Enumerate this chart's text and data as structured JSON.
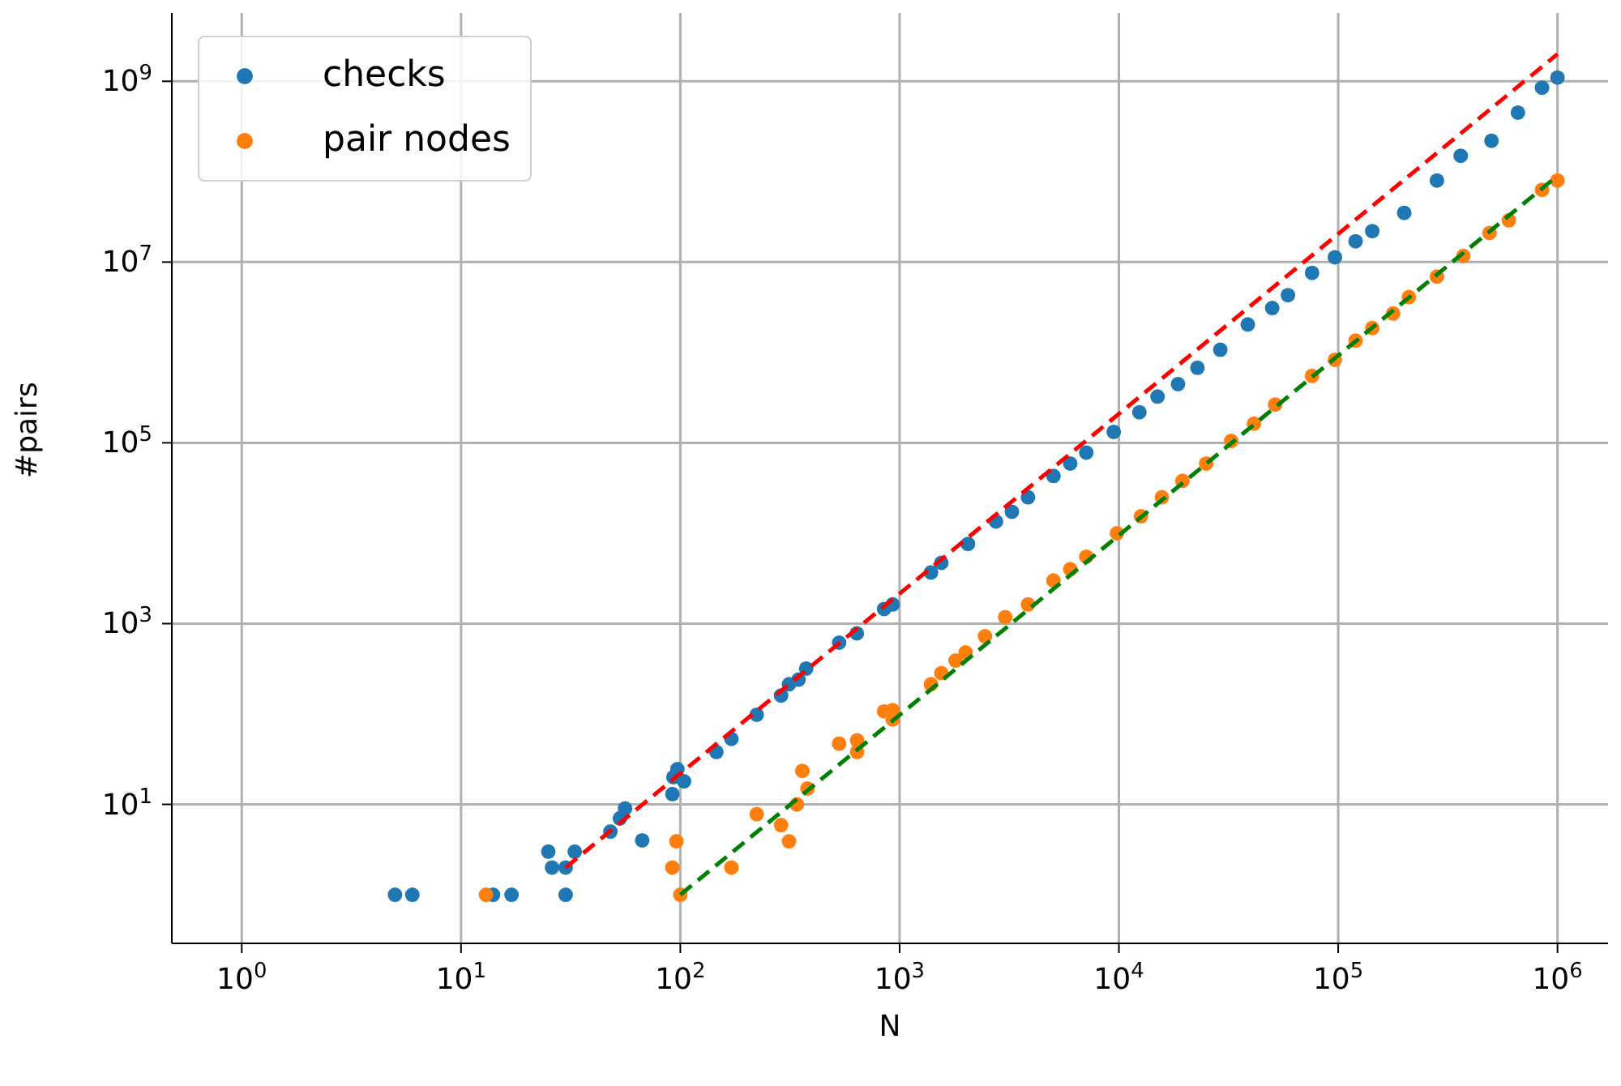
{
  "chart_data": {
    "type": "scatter",
    "xlabel": "N",
    "ylabel": "#pairs",
    "log": "xy",
    "grid": true,
    "legend": "top left",
    "marker": "circle",
    "xlim": [
      0.48,
      1700000.0
    ],
    "ylim": [
      0.29,
      5700000000.0
    ],
    "xticks": [
      {
        "value": 1,
        "label": "10$^{0}$"
      },
      {
        "value": 10,
        "label": "10$^{1}$"
      },
      {
        "value": 100,
        "label": "10$^{2}$"
      },
      {
        "value": 1000,
        "label": "10$^{3}$"
      },
      {
        "value": 10000,
        "label": "10$^{4}$"
      },
      {
        "value": 100000,
        "label": "10$^{5}$"
      },
      {
        "value": 1000000,
        "label": "10$^{6}$"
      }
    ],
    "yticks": [
      {
        "value": 10,
        "label": "10$^{1}$"
      },
      {
        "value": 1000,
        "label": "10$^{3}$"
      },
      {
        "value": 100000,
        "label": "10$^{5}$"
      },
      {
        "value": 10000000,
        "label": "10$^{7}$"
      },
      {
        "value": 1000000000,
        "label": "10$^{9}$"
      }
    ],
    "series": [
      {
        "name": "checks",
        "color": "#1f77b4",
        "x": [
          5,
          6,
          14,
          17,
          30,
          25,
          26,
          30,
          33,
          48,
          53,
          56,
          67,
          92,
          93,
          97,
          104,
          146,
          171,
          223,
          288,
          313,
          346,
          375,
          530,
          638,
          850,
          930,
          1390,
          1550,
          2050,
          2750,
          3250,
          3850,
          5030,
          6000,
          7100,
          9470,
          12400,
          15000,
          18600,
          22800,
          29000,
          38700,
          50000,
          59000,
          76000,
          96600,
          120000,
          143000,
          200000,
          282000,
          362000,
          500000,
          660000,
          850000,
          1000000
        ],
        "values": [
          1,
          1,
          1,
          1,
          1,
          3,
          2,
          2,
          3,
          5,
          7,
          9,
          4,
          13,
          20,
          24.5,
          18,
          38,
          53,
          98,
          160,
          213,
          240,
          318,
          615,
          780,
          1450,
          1630,
          3680,
          4700,
          7600,
          13500,
          17300,
          25000,
          43000,
          59000,
          78000,
          132000,
          218000,
          325000,
          447000,
          676000,
          1070000,
          2040000,
          3100000,
          4300000,
          7600000,
          11300000,
          17000000,
          22000000,
          35000000,
          80000000,
          150000000,
          220000000,
          450000000,
          850000000,
          1100000000
        ]
      },
      {
        "name": "pair nodes",
        "color": "#ff7f0e",
        "x": [
          13,
          96,
          92,
          100,
          171,
          223,
          288,
          313,
          340,
          360,
          380,
          530,
          640,
          640,
          850,
          930,
          930,
          1390,
          1550,
          1800,
          2000,
          2450,
          3030,
          3850,
          5030,
          6000,
          7100,
          9800,
          12600,
          15700,
          19500,
          25000,
          32500,
          41300,
          51600,
          76000,
          96600,
          120000,
          143000,
          178000,
          210000,
          282000,
          372000,
          490000,
          600000,
          850000,
          1000000
        ],
        "values": [
          1,
          3.9,
          2,
          1,
          2,
          7.8,
          5.9,
          3.9,
          10,
          23.5,
          15,
          47,
          51,
          38,
          107,
          110,
          87,
          213,
          283,
          390,
          480,
          725,
          1180,
          1630,
          3000,
          4000,
          5500,
          10000,
          15400,
          25000,
          38000,
          59000,
          105000,
          163000,
          265000,
          550000,
          830000,
          1350000,
          1860000,
          2700000,
          4100000,
          6900000,
          11700000,
          21000000,
          29000000,
          63000000,
          80000000
        ]
      },
      {
        "type": "line",
        "color": "#ff0000",
        "line_style": "dashed",
        "marker": "none",
        "x": [
          30,
          1000000
        ],
        "values": [
          2,
          2000000000
        ]
      },
      {
        "type": "line",
        "color": "#008000",
        "line_style": "dashed",
        "marker": "none",
        "x": [
          100,
          1000000
        ],
        "values": [
          1,
          90000000
        ]
      }
    ]
  }
}
